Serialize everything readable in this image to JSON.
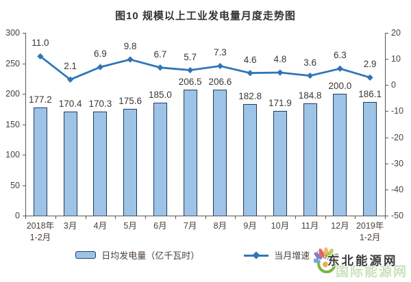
{
  "chart_data": {
    "type": "bar+line",
    "title": "图10 规模以上工业发电量月度走势图",
    "categories": [
      "2018年\n1-2月",
      "3月",
      "4月",
      "5月",
      "6月",
      "7月",
      "8月",
      "9月",
      "10月",
      "11月",
      "12月",
      "2019年\n1-2月"
    ],
    "series": [
      {
        "name": "日均发电量（亿千瓦时）",
        "type": "bar",
        "axis": "left",
        "values": [
          177.2,
          170.4,
          170.3,
          175.6,
          185.0,
          206.5,
          206.6,
          182.8,
          171.9,
          184.8,
          200.0,
          186.1
        ],
        "color": "#9DC3E6",
        "border_color": "#1F3B63"
      },
      {
        "name": "当月增速（%）",
        "type": "line",
        "axis": "right",
        "values": [
          11.0,
          2.1,
          6.9,
          9.8,
          6.7,
          5.7,
          7.3,
          4.6,
          4.8,
          3.6,
          6.3,
          2.9
        ],
        "color": "#2E75B6"
      }
    ],
    "left_axis": {
      "min": 0,
      "max": 300,
      "step": 50,
      "ticks": [
        "300",
        "250",
        "200",
        "150",
        "100",
        "50",
        "0"
      ]
    },
    "right_axis": {
      "min": -50,
      "max": 20,
      "step": 10,
      "ticks": [
        "20",
        "10",
        "0",
        "-10",
        "-20",
        "-30",
        "-40",
        "-50"
      ]
    },
    "grid": false,
    "legend_position": "bottom"
  },
  "watermark": {
    "text": "东北能源网",
    "background_text": "国际能源网"
  }
}
